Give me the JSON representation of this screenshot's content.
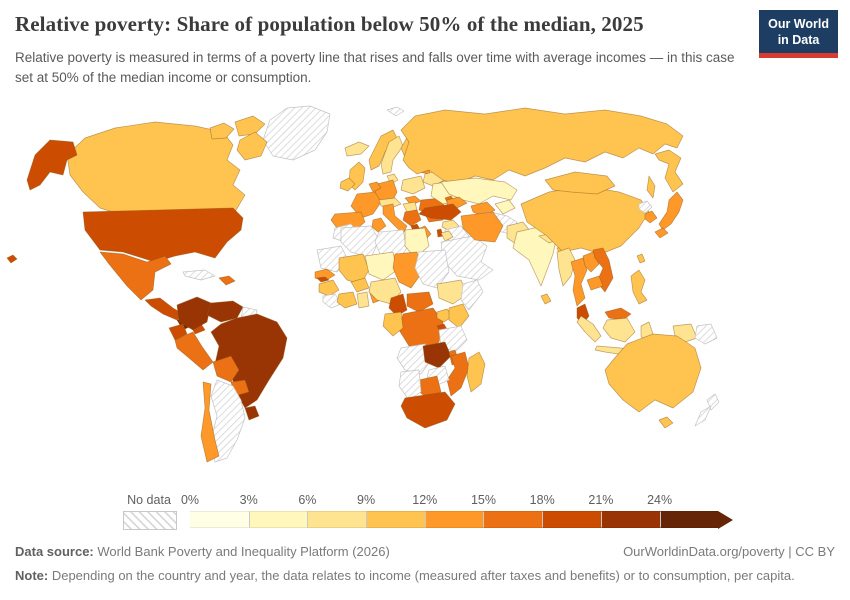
{
  "header": {
    "title": "Relative poverty: Share of population below 50% of the median, 2025",
    "subtitle": "Relative poverty is measured in terms of a poverty line that rises and falls over time with average incomes — in this case set at 50% of the median income or consumption.",
    "logo": {
      "line1": "Our World",
      "line2": "in Data",
      "bg_color": "#1d3d63",
      "accent_color": "#d73c32"
    }
  },
  "chart_data": {
    "type": "choropleth",
    "title": "Relative poverty: Share of population below 50% of the median, 2025",
    "unit": "%",
    "legend_tick_labels": [
      "0%",
      "3%",
      "6%",
      "9%",
      "12%",
      "15%",
      "18%",
      "21%",
      "24%"
    ],
    "bin_colors": [
      "#ffffe5",
      "#fff7bc",
      "#fee391",
      "#fec44f",
      "#fe9929",
      "#ec7014",
      "#cc4c02",
      "#993404",
      "#662506"
    ],
    "bin_ranges": [
      "0–3%",
      "3–6%",
      "6–9%",
      "9–12%",
      "12–15%",
      "15–18%",
      "18–21%",
      "21–24%",
      "24%+"
    ],
    "no_data_label": "No data",
    "countries_bin": {
      "greenland": -1,
      "canada": 3,
      "united-states": 6,
      "mexico": 5,
      "central-america": 6,
      "costa-rica": 8,
      "panama": 6,
      "cuba": -1,
      "hispaniola": 5,
      "colombia": 7,
      "venezuela": 7,
      "guyana": -1,
      "ecuador": 6,
      "peru": 5,
      "brazil": 7,
      "bolivia": 5,
      "paraguay": 5,
      "uruguay": 7,
      "argentina": -1,
      "chile": 4,
      "iceland": 2,
      "svalbard": -1,
      "united-kingdom": 3,
      "ireland": 3,
      "norway": 3,
      "sweden": 2,
      "finland": 3,
      "denmark": 2,
      "baltics": 4,
      "belarus": 2,
      "poland": 2,
      "germany": 4,
      "benelux": 4,
      "france": 4,
      "spain": 4,
      "italy": 4,
      "austria-czechia": 2,
      "hungary": 2,
      "slovakia": 4,
      "serbia": 5,
      "albania": 6,
      "greece": 4,
      "romania": 5,
      "bulgaria": 5,
      "ukraine": 1,
      "moldova": 5,
      "russia": 3,
      "kazakhstan": 1,
      "caucasus": 4,
      "uzbekistan": 4,
      "kyrgyzstan-tajikistan": 1,
      "turkmenistan-afghanistan": -1,
      "turkey": 6,
      "syria": 2,
      "iraq": -1,
      "israel": 6,
      "jordan": 2,
      "saudi-arabia": -1,
      "iran": 4,
      "pakistan": 2,
      "india": 1,
      "nepal": 2,
      "bangladesh": 3,
      "sri-lanka": 3,
      "china": 3,
      "mongolia": 3,
      "north-korea": -1,
      "south-korea": 4,
      "japan": 4,
      "taiwan": 3,
      "myanmar": 2,
      "thailand": 4,
      "laos": 4,
      "vietnam": 5,
      "cambodia": 4,
      "malaysia": 6,
      "malaysia-borneo": 5,
      "indonesia": 2,
      "philippines": 3,
      "papua-new-guinea": -1,
      "australia": 3,
      "new-zealand": -1,
      "morocco": -1,
      "mauritania": -1,
      "algeria": -1,
      "tunisia": 4,
      "libya": -1,
      "egypt": 1,
      "senegal": 4,
      "gambia": 6,
      "guinea": 3,
      "sierra-leone-liberia": -1,
      "mali": 3,
      "burkina-faso": 3,
      "cote-divoire": 3,
      "ghana": 2,
      "togo-benin": 4,
      "niger": 1,
      "nigeria": 2,
      "chad": 4,
      "sudan": -1,
      "ethiopia": 2,
      "somalia": -1,
      "cameroon": 6,
      "central-african-republic": 5,
      "dr-congo": 5,
      "congo-gabon": 3,
      "uganda": 3,
      "kenya": 3,
      "rwanda-burundi": 6,
      "tanzania": -1,
      "angola": -1,
      "zambia": 7,
      "malawi": 5,
      "mozambique": 5,
      "zimbabwe": -1,
      "botswana": 5,
      "namibia": -1,
      "south-africa": 6,
      "madagascar": 3
    }
  },
  "footer": {
    "source_label": "Data source:",
    "source_text": " World Bank Poverty and Inequality Platform (2026)",
    "right_text": "OurWorldinData.org/poverty | CC BY",
    "note_label": "Note:",
    "note_text": " Depending on the country and year, the data relates to income (measured after taxes and benefits) or to consumption, per capita."
  }
}
